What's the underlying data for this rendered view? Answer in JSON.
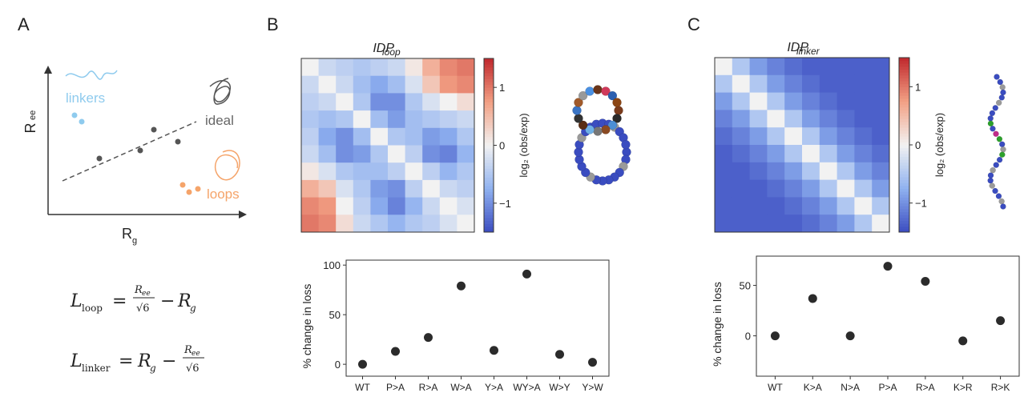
{
  "panel_labels": [
    "A",
    "B",
    "C"
  ],
  "schematic": {
    "y_label": "R",
    "y_label_sub": "ee",
    "x_label": "R",
    "x_label_sub": "g",
    "groups": [
      "linkers",
      "ideal",
      "loops"
    ]
  },
  "formulas": [
    {
      "lhs": "L",
      "lhs_sub": "loop",
      "eq": "=",
      "num": "R",
      "num_sub": "ee",
      "den": "√6",
      "op": "−",
      "term": "R",
      "term_sub": "g"
    },
    {
      "lhs": "L",
      "lhs_sub": "linker",
      "eq": "=",
      "term": "R",
      "term_sub": "g",
      "op": "−",
      "num": "R",
      "num_sub": "ee",
      "den": "√6"
    }
  ],
  "chart_data": [
    {
      "type": "heatmap",
      "title": "IDP",
      "title_sub": "loop",
      "matrix": [
        [
          0,
          -0.3,
          -0.4,
          -0.5,
          -0.4,
          -0.3,
          0.1,
          0.6,
          0.9,
          1.0
        ],
        [
          -0.3,
          0,
          -0.3,
          -0.6,
          -0.8,
          -0.6,
          -0.2,
          0.4,
          0.8,
          0.9
        ],
        [
          -0.4,
          -0.3,
          0,
          -0.5,
          -1.0,
          -1.0,
          -0.5,
          -0.2,
          0.0,
          0.2
        ],
        [
          -0.5,
          -0.6,
          -0.5,
          0,
          -0.6,
          -0.9,
          -0.6,
          -0.5,
          -0.4,
          -0.3
        ],
        [
          -0.4,
          -0.8,
          -1.0,
          -0.6,
          0,
          -0.5,
          -0.6,
          -0.9,
          -0.8,
          -0.5
        ],
        [
          -0.3,
          -0.6,
          -1.0,
          -0.9,
          -0.5,
          0,
          -0.4,
          -1.0,
          -1.1,
          -0.7
        ],
        [
          0.1,
          -0.2,
          -0.5,
          -0.6,
          -0.6,
          -0.4,
          0,
          -0.4,
          -0.7,
          -0.5
        ],
        [
          0.6,
          0.4,
          -0.2,
          -0.5,
          -0.9,
          -1.0,
          -0.4,
          0,
          -0.3,
          -0.4
        ],
        [
          0.9,
          0.8,
          0.0,
          -0.4,
          -0.8,
          -1.1,
          -0.7,
          -0.3,
          0,
          -0.2
        ],
        [
          1.0,
          0.9,
          0.2,
          -0.3,
          -0.5,
          -0.7,
          -0.5,
          -0.4,
          -0.2,
          0
        ]
      ],
      "clim": [
        -1.5,
        1.5
      ],
      "colors": [
        "#3b4cc0",
        "#8fb1f0",
        "#f2f2f2",
        "#f2a084",
        "#c0282d"
      ],
      "cticks": [
        {
          "value": -1,
          "label": "−1"
        },
        0,
        1
      ],
      "colorbar_label": "log₂ (obs/exp)"
    },
    {
      "type": "scatter",
      "y_label": "% change in loss",
      "categories": [
        "WT",
        "P>A",
        "R>A",
        "W>A",
        "Y>A",
        "WY>A",
        "W>Y",
        "Y>W"
      ],
      "values": [
        0,
        13,
        27,
        79,
        14,
        91,
        10,
        2
      ],
      "color": "#2b2b2b",
      "ylim": [
        -12,
        105
      ],
      "yticks": [
        0,
        50,
        100
      ]
    },
    {
      "type": "heatmap",
      "title": "IDP",
      "title_sub": "linker",
      "matrix": [
        [
          0,
          -0.5,
          -0.9,
          -1.1,
          -1.25,
          -1.35,
          -1.35,
          -1.35,
          -1.35,
          -1.35
        ],
        [
          -0.5,
          0,
          -0.5,
          -0.9,
          -1.1,
          -1.25,
          -1.35,
          -1.35,
          -1.35,
          -1.35
        ],
        [
          -0.9,
          -0.5,
          0,
          -0.5,
          -0.9,
          -1.1,
          -1.25,
          -1.35,
          -1.35,
          -1.35
        ],
        [
          -1.1,
          -0.9,
          -0.5,
          0,
          -0.5,
          -0.9,
          -1.1,
          -1.25,
          -1.35,
          -1.35
        ],
        [
          -1.25,
          -1.1,
          -0.9,
          -0.5,
          0,
          -0.5,
          -0.9,
          -1.1,
          -1.25,
          -1.35
        ],
        [
          -1.35,
          -1.25,
          -1.1,
          -0.9,
          -0.5,
          0,
          -0.5,
          -0.9,
          -1.1,
          -1.25
        ],
        [
          -1.35,
          -1.35,
          -1.25,
          -1.1,
          -0.9,
          -0.5,
          0,
          -0.5,
          -0.9,
          -1.1
        ],
        [
          -1.35,
          -1.35,
          -1.35,
          -1.25,
          -1.1,
          -0.9,
          -0.5,
          0,
          -0.5,
          -0.9
        ],
        [
          -1.35,
          -1.35,
          -1.35,
          -1.35,
          -1.25,
          -1.1,
          -0.9,
          -0.5,
          0,
          -0.5
        ],
        [
          -1.35,
          -1.35,
          -1.35,
          -1.35,
          -1.35,
          -1.25,
          -1.1,
          -0.9,
          -0.5,
          0
        ]
      ],
      "clim": [
        -1.5,
        1.5
      ],
      "colors": [
        "#3b4cc0",
        "#8fb1f0",
        "#f2f2f2",
        "#f2a084",
        "#c0282d"
      ],
      "cticks": [
        {
          "value": -1,
          "label": "−1"
        },
        0,
        1
      ],
      "colorbar_label": "log₂ (obs/exp)"
    },
    {
      "type": "scatter",
      "y_label": "% change in loss",
      "categories": [
        "WT",
        "K>A",
        "N>A",
        "P>A",
        "R>A",
        "K>R",
        "R>K"
      ],
      "values": [
        0,
        37,
        0,
        69,
        54,
        -5,
        15
      ],
      "color": "#2b2b2b",
      "ylim": [
        -40,
        79
      ],
      "yticks": [
        0,
        50
      ]
    }
  ]
}
